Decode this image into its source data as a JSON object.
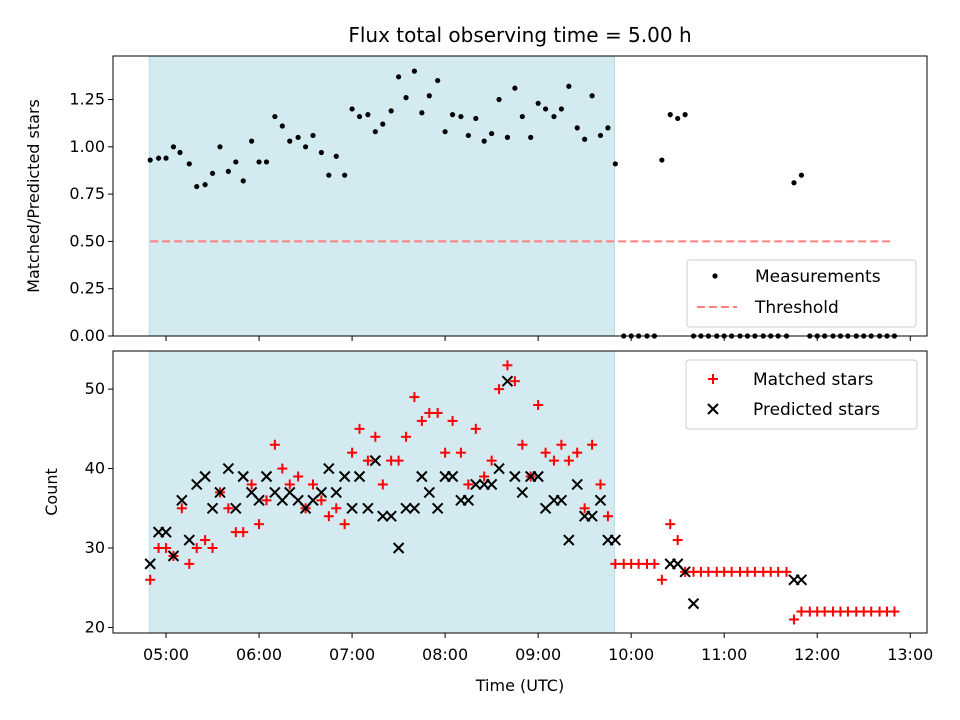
{
  "chart_data": {
    "title": "Flux total observing time = 5.00 h",
    "xlabel": "Time (UTC)",
    "x_tick_labels": [
      "05:00",
      "06:00",
      "07:00",
      "08:00",
      "09:00",
      "10:00",
      "11:00",
      "12:00",
      "13:00"
    ],
    "x_range_hours": [
      4.43,
      13.18
    ],
    "shaded_interval_hours": [
      4.82,
      9.82
    ],
    "shade_color": "#d4eaf1",
    "panels": [
      {
        "type": "scatter",
        "ylabel": "Matched/Predicted stars",
        "ylim": [
          0,
          1.48
        ],
        "y_ticks": [
          "0.00",
          "0.25",
          "0.50",
          "0.75",
          "1.00",
          "1.25"
        ],
        "legend_position": "lower-right",
        "series": [
          {
            "name": "Measurements",
            "marker": "dot",
            "color": "#000000",
            "x": [
              4.83,
              4.92,
              5.0,
              5.08,
              5.15,
              5.25,
              5.33,
              5.42,
              5.5,
              5.58,
              5.67,
              5.75,
              5.83,
              5.92,
              6.0,
              6.08,
              6.17,
              6.25,
              6.33,
              6.42,
              6.5,
              6.58,
              6.67,
              6.75,
              6.83,
              6.92,
              7.0,
              7.08,
              7.17,
              7.25,
              7.33,
              7.42,
              7.5,
              7.58,
              7.67,
              7.75,
              7.83,
              7.92,
              8.0,
              8.08,
              8.17,
              8.25,
              8.33,
              8.42,
              8.5,
              8.58,
              8.67,
              8.75,
              8.83,
              8.92,
              9.0,
              9.08,
              9.17,
              9.25,
              9.33,
              9.42,
              9.5,
              9.58,
              9.67,
              9.75,
              9.83,
              9.92,
              10.0,
              10.08,
              10.17,
              10.25,
              10.33,
              10.42,
              10.5,
              10.58,
              10.67,
              10.75,
              10.83,
              10.92,
              11.0,
              11.08,
              11.17,
              11.25,
              11.33,
              11.42,
              11.5,
              11.58,
              11.67,
              11.75,
              11.83,
              11.92,
              12.0,
              12.08,
              12.17,
              12.25,
              12.33,
              12.42,
              12.5,
              12.58,
              12.67,
              12.75,
              12.83
            ],
            "y": [
              0.93,
              0.94,
              0.94,
              1.0,
              0.97,
              0.91,
              0.79,
              0.8,
              0.86,
              1.0,
              0.87,
              0.92,
              0.82,
              1.03,
              0.92,
              0.92,
              1.16,
              1.11,
              1.03,
              1.05,
              1.0,
              1.06,
              0.97,
              0.85,
              0.95,
              0.85,
              1.2,
              1.16,
              1.17,
              1.08,
              1.12,
              1.19,
              1.37,
              1.26,
              1.4,
              1.18,
              1.27,
              1.35,
              1.08,
              1.17,
              1.16,
              1.06,
              1.15,
              1.03,
              1.07,
              1.25,
              1.05,
              1.31,
              1.16,
              1.05,
              1.23,
              1.2,
              1.16,
              1.2,
              1.32,
              1.1,
              1.04,
              1.27,
              1.06,
              1.1,
              0.91,
              0,
              0,
              0,
              0,
              0,
              0.93,
              1.17,
              1.15,
              1.17,
              0,
              0,
              0,
              0,
              0,
              0,
              0,
              0,
              0,
              0,
              0,
              0,
              0,
              0.81,
              0.85,
              0,
              0,
              0,
              0,
              0,
              0,
              0,
              0,
              0,
              0,
              0,
              0
            ]
          },
          {
            "name": "Threshold",
            "type": "line",
            "style": "dashed",
            "color": "#ff7f7f",
            "x": [
              4.83,
              12.83
            ],
            "y": [
              0.5,
              0.5
            ]
          }
        ]
      },
      {
        "type": "scatter",
        "ylabel": "Count",
        "ylim": [
          19.3,
          54.8
        ],
        "y_ticks": [
          "20",
          "30",
          "40",
          "50"
        ],
        "legend_position": "upper-right",
        "series": [
          {
            "name": "Matched stars",
            "marker": "plus",
            "color": "#ff0000",
            "x": [
              4.83,
              4.92,
              5.0,
              5.08,
              5.17,
              5.25,
              5.33,
              5.42,
              5.5,
              5.58,
              5.67,
              5.75,
              5.83,
              5.92,
              6.0,
              6.08,
              6.17,
              6.25,
              6.33,
              6.42,
              6.5,
              6.58,
              6.67,
              6.75,
              6.83,
              6.92,
              7.0,
              7.08,
              7.17,
              7.25,
              7.33,
              7.42,
              7.5,
              7.58,
              7.67,
              7.75,
              7.83,
              7.92,
              8.0,
              8.08,
              8.17,
              8.25,
              8.33,
              8.42,
              8.5,
              8.58,
              8.67,
              8.75,
              8.83,
              8.92,
              9.0,
              9.08,
              9.17,
              9.25,
              9.33,
              9.42,
              9.5,
              9.58,
              9.67,
              9.75,
              9.83,
              9.92,
              10.0,
              10.08,
              10.17,
              10.25,
              10.33,
              10.42,
              10.5,
              10.58,
              10.67,
              10.75,
              10.83,
              10.92,
              11.0,
              11.08,
              11.17,
              11.25,
              11.33,
              11.42,
              11.5,
              11.58,
              11.67,
              11.75,
              11.83,
              11.92,
              12.0,
              12.08,
              12.17,
              12.25,
              12.33,
              12.42,
              12.5,
              12.58,
              12.67,
              12.75,
              12.83
            ],
            "y": [
              26,
              30,
              30,
              29,
              35,
              28,
              30,
              31,
              30,
              37,
              35,
              32,
              32,
              38,
              33,
              36,
              43,
              40,
              38,
              39,
              35,
              38,
              36,
              34,
              35,
              33,
              42,
              45,
              41,
              44,
              38,
              41,
              41,
              44,
              49,
              46,
              47,
              47,
              42,
              46,
              42,
              38,
              45,
              39,
              41,
              50,
              53,
              51,
              43,
              39,
              48,
              42,
              41,
              43,
              41,
              42,
              35,
              43,
              38,
              34,
              28,
              28,
              28,
              28,
              28,
              28,
              26,
              33,
              31,
              27,
              27,
              27,
              27,
              27,
              27,
              27,
              27,
              27,
              27,
              27,
              27,
              27,
              27,
              21,
              22,
              22,
              22,
              22,
              22,
              22,
              22,
              22,
              22,
              22,
              22,
              22,
              22
            ]
          },
          {
            "name": "Predicted stars",
            "marker": "x",
            "color": "#000000",
            "x": [
              4.83,
              4.92,
              5.0,
              5.08,
              5.17,
              5.25,
              5.33,
              5.42,
              5.5,
              5.58,
              5.67,
              5.75,
              5.83,
              5.92,
              6.0,
              6.08,
              6.17,
              6.25,
              6.33,
              6.42,
              6.5,
              6.58,
              6.67,
              6.75,
              6.83,
              6.92,
              7.0,
              7.08,
              7.17,
              7.25,
              7.33,
              7.42,
              7.5,
              7.58,
              7.67,
              7.75,
              7.83,
              7.92,
              8.0,
              8.08,
              8.17,
              8.25,
              8.33,
              8.42,
              8.5,
              8.58,
              8.67,
              8.75,
              8.83,
              8.92,
              9.0,
              9.08,
              9.17,
              9.25,
              9.33,
              9.42,
              9.5,
              9.58,
              9.67,
              9.75,
              9.83,
              10.42,
              10.5,
              10.58,
              10.67,
              11.75,
              11.83
            ],
            "y": [
              28,
              32,
              32,
              29,
              36,
              31,
              38,
              39,
              35,
              37,
              40,
              35,
              39,
              37,
              36,
              39,
              37,
              36,
              37,
              36,
              35,
              36,
              37,
              40,
              37,
              39,
              35,
              39,
              35,
              41,
              34,
              34,
              30,
              35,
              35,
              39,
              37,
              35,
              39,
              39,
              36,
              36,
              38,
              38,
              38,
              40,
              51,
              39,
              37,
              39,
              39,
              35,
              36,
              36,
              31,
              38,
              34,
              34,
              36,
              31,
              31,
              28,
              28,
              27,
              23,
              26,
              26
            ]
          }
        ]
      }
    ]
  }
}
